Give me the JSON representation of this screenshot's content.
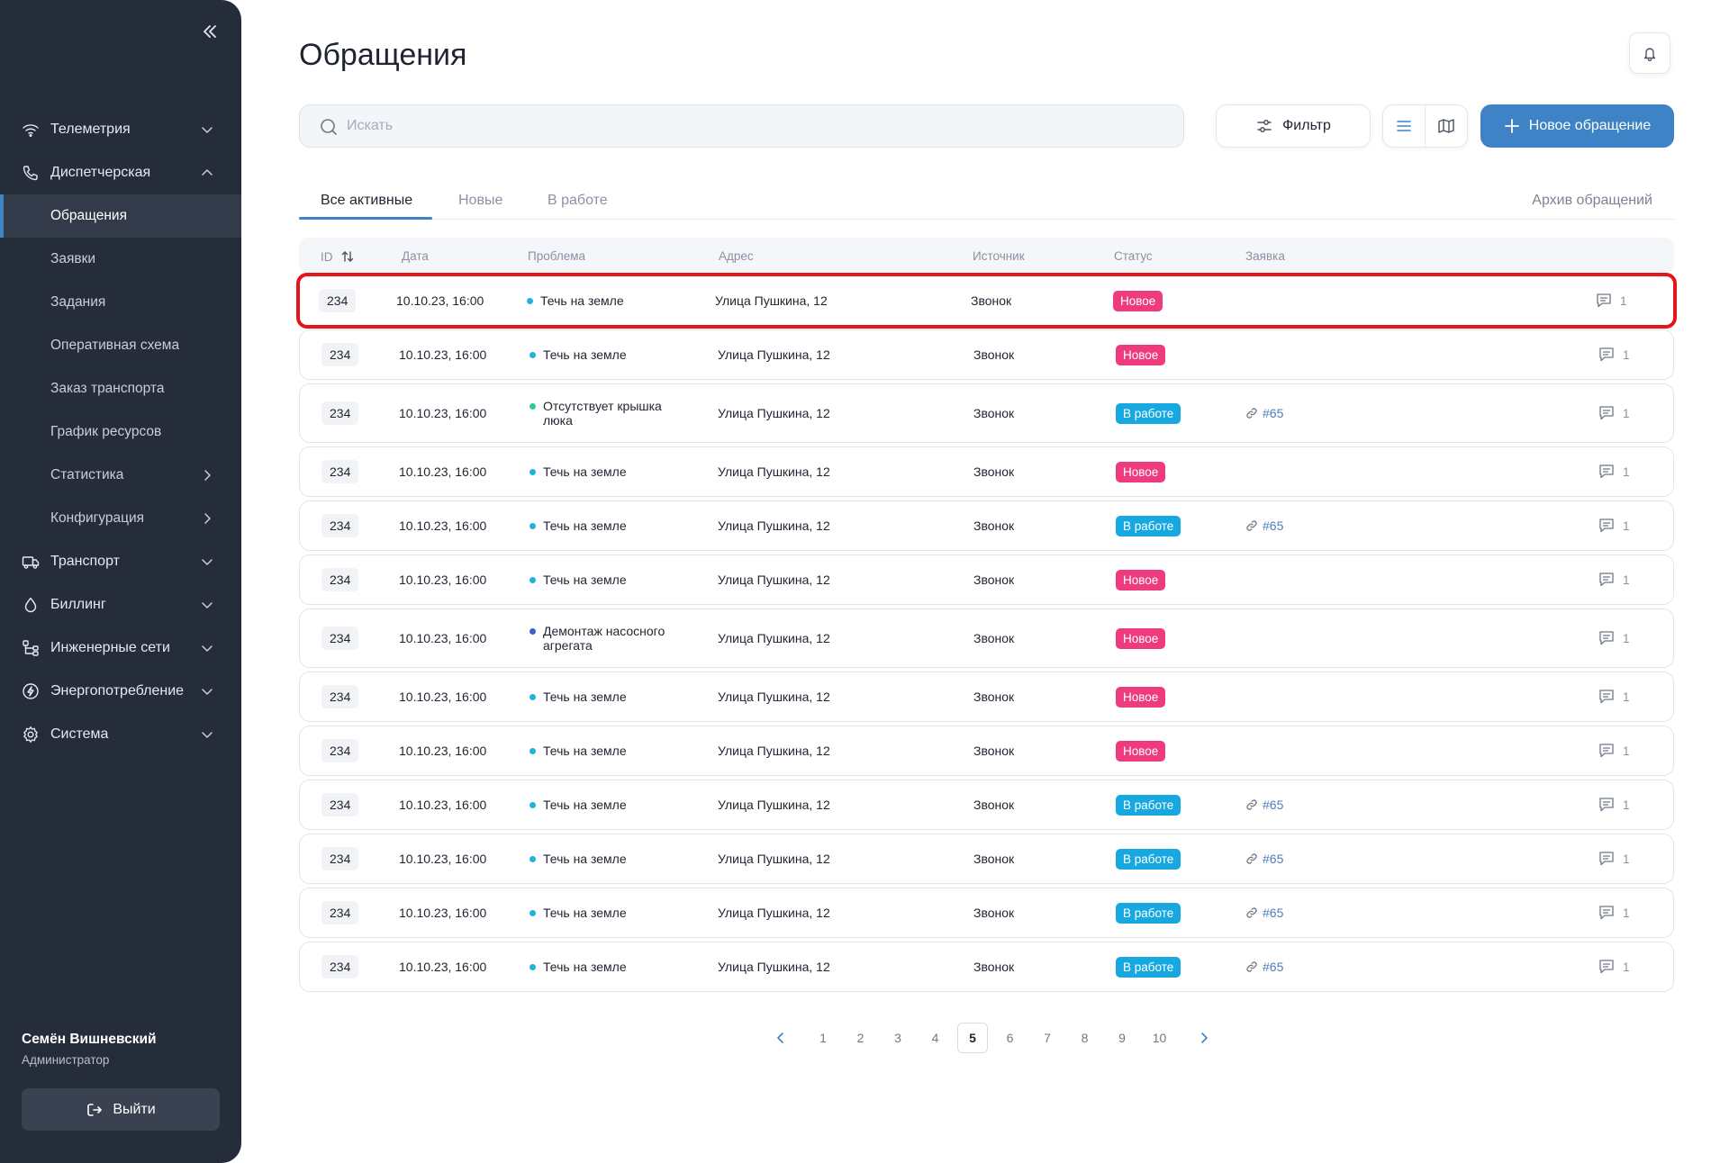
{
  "sidebar": {
    "items": [
      {
        "label": "Телеметрия",
        "icon": "wifi-icon",
        "expanded": false
      },
      {
        "label": "Диспетчерская",
        "icon": "phone-icon",
        "expanded": true
      },
      {
        "label": "Обращения",
        "sub": true,
        "active": true
      },
      {
        "label": "Заявки",
        "sub": true
      },
      {
        "label": "Задания",
        "sub": true
      },
      {
        "label": "Оперативная схема",
        "sub": true
      },
      {
        "label": "Заказ транспорта",
        "sub": true
      },
      {
        "label": "График ресурсов",
        "sub": true
      },
      {
        "label": "Статистика",
        "sub": true
      },
      {
        "label": "Конфигурация",
        "sub": true
      },
      {
        "label": "Транспорт",
        "icon": "truck-icon"
      },
      {
        "label": "Биллинг",
        "icon": "drop-icon"
      },
      {
        "label": "Инженерные сети",
        "icon": "network-icon"
      },
      {
        "label": "Энергопотребление",
        "icon": "energy-icon"
      },
      {
        "label": "Система",
        "icon": "gear-icon"
      }
    ],
    "user": {
      "name": "Семён Вишневский",
      "role": "Администратор"
    },
    "logout_label": "Выйти"
  },
  "header": {
    "title": "Обращения"
  },
  "toolbar": {
    "search_placeholder": "Искать",
    "filter_label": "Фильтр",
    "new_label": "Новое обращение"
  },
  "tabs": {
    "items": [
      "Все активные",
      "Новые",
      "В работе"
    ],
    "archive": "Архив обращений"
  },
  "table": {
    "columns": [
      "ID",
      "Дата",
      "Проблема",
      "Адрес",
      "Источник",
      "Статус",
      "Заявка"
    ],
    "rows": [
      {
        "id": "234",
        "date": "10.10.23, 16:00",
        "problem": "Течь на земле",
        "dot": "#1fb3e0",
        "address": "Улица Пушкина, 12",
        "source": "Звонок",
        "status": "Новое",
        "ticket": "",
        "comments": "1"
      },
      {
        "id": "234",
        "date": "10.10.23, 16:00",
        "problem": "Течь на земле",
        "dot": "#1fb3e0",
        "address": "Улица Пушкина, 12",
        "source": "Звонок",
        "status": "Новое",
        "ticket": "",
        "comments": "1"
      },
      {
        "id": "234",
        "date": "10.10.23, 16:00",
        "problem": "Отсутствует крышка люка",
        "dot": "#2ecc9a",
        "address": "Улица Пушкина, 12",
        "source": "Звонок",
        "status": "В работе",
        "ticket": "#65",
        "comments": "1"
      },
      {
        "id": "234",
        "date": "10.10.23, 16:00",
        "problem": "Течь на земле",
        "dot": "#1fb3e0",
        "address": "Улица Пушкина, 12",
        "source": "Звонок",
        "status": "Новое",
        "ticket": "",
        "comments": "1"
      },
      {
        "id": "234",
        "date": "10.10.23, 16:00",
        "problem": "Течь на земле",
        "dot": "#1fb3e0",
        "address": "Улица Пушкина, 12",
        "source": "Звонок",
        "status": "В работе",
        "ticket": "#65",
        "comments": "1"
      },
      {
        "id": "234",
        "date": "10.10.23, 16:00",
        "problem": "Течь на земле",
        "dot": "#1fb3e0",
        "address": "Улица Пушкина, 12",
        "source": "Звонок",
        "status": "Новое",
        "ticket": "",
        "comments": "1"
      },
      {
        "id": "234",
        "date": "10.10.23, 16:00",
        "problem": "Демонтаж насосного агрегата",
        "dot": "#3a5fc8",
        "address": "Улица Пушкина, 12",
        "source": "Звонок",
        "status": "Новое",
        "ticket": "",
        "comments": "1"
      },
      {
        "id": "234",
        "date": "10.10.23, 16:00",
        "problem": "Течь на земле",
        "dot": "#1fb3e0",
        "address": "Улица Пушкина, 12",
        "source": "Звонок",
        "status": "Новое",
        "ticket": "",
        "comments": "1"
      },
      {
        "id": "234",
        "date": "10.10.23, 16:00",
        "problem": "Течь на земле",
        "dot": "#1fb3e0",
        "address": "Улица Пушкина, 12",
        "source": "Звонок",
        "status": "Новое",
        "ticket": "",
        "comments": "1"
      },
      {
        "id": "234",
        "date": "10.10.23, 16:00",
        "problem": "Течь на земле",
        "dot": "#1fb3e0",
        "address": "Улица Пушкина, 12",
        "source": "Звонок",
        "status": "В работе",
        "ticket": "#65",
        "comments": "1"
      },
      {
        "id": "234",
        "date": "10.10.23, 16:00",
        "problem": "Течь на земле",
        "dot": "#1fb3e0",
        "address": "Улица Пушкина, 12",
        "source": "Звонок",
        "status": "В работе",
        "ticket": "#65",
        "comments": "1"
      },
      {
        "id": "234",
        "date": "10.10.23, 16:00",
        "problem": "Течь на земле",
        "dot": "#1fb3e0",
        "address": "Улица Пушкина, 12",
        "source": "Звонок",
        "status": "В работе",
        "ticket": "#65",
        "comments": "1"
      },
      {
        "id": "234",
        "date": "10.10.23, 16:00",
        "problem": "Течь на земле",
        "dot": "#1fb3e0",
        "address": "Улица Пушкина, 12",
        "source": "Звонок",
        "status": "В работе",
        "ticket": "#65",
        "comments": "1"
      }
    ]
  },
  "status_colors": {
    "Новое": "#ee3b7e",
    "В работе": "#18a8e0"
  },
  "pagination": {
    "pages": [
      "1",
      "2",
      "3",
      "4",
      "5",
      "6",
      "7",
      "8",
      "9",
      "10"
    ],
    "current": "5"
  }
}
